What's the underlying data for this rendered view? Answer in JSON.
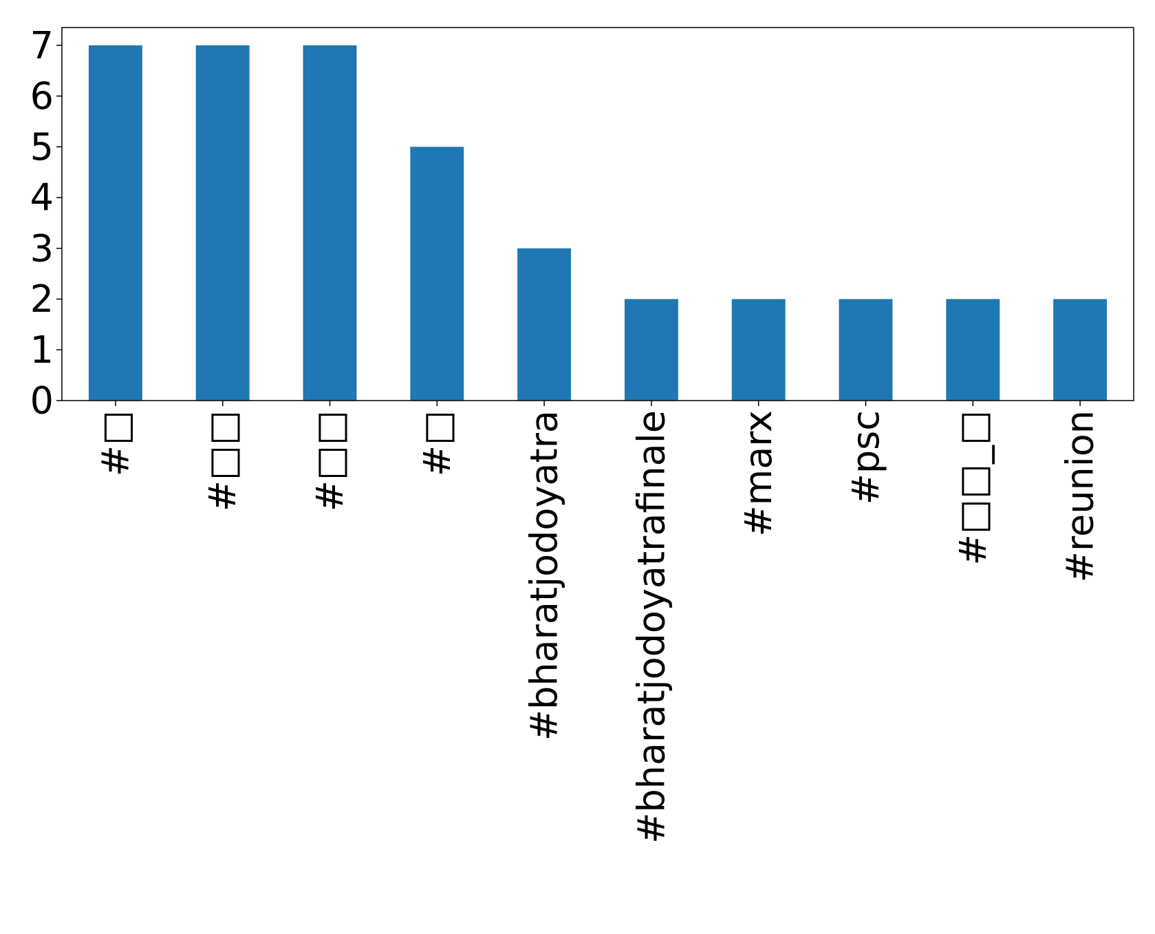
{
  "chart_data": {
    "type": "bar",
    "categories": [
      "#□",
      "#□□",
      "#□□",
      "#□",
      "#bharatjodoyatra",
      "#bharatjodoyatrafinale",
      "#marx",
      "#psc",
      "#□□_□",
      "#reunion"
    ],
    "values": [
      7,
      7,
      7,
      5,
      3,
      2,
      2,
      2,
      2,
      2
    ],
    "y_ticks": [
      0,
      1,
      2,
      3,
      4,
      5,
      6,
      7
    ],
    "ylim": [
      0,
      7.35
    ],
    "title": "",
    "xlabel": "",
    "ylabel": "",
    "grid": false,
    "legend": "none",
    "bar_color": "#1f77b4"
  }
}
